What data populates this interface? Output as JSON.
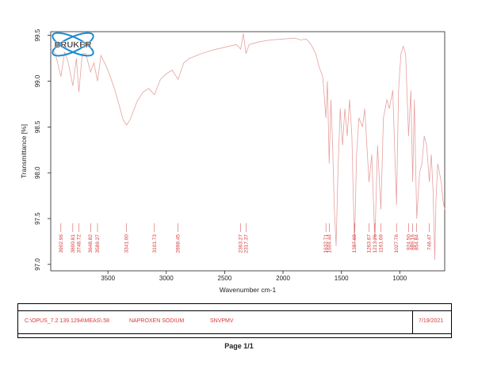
{
  "chart_data": {
    "type": "line",
    "xlabel": "Wavenumber cm-1",
    "ylabel": "Transmittance [%]",
    "x_ticks": [
      3500,
      3000,
      2500,
      2000,
      1500,
      1000
    ],
    "y_ticks": [
      97.0,
      97.5,
      98.0,
      98.5,
      99.0,
      99.5
    ],
    "xlim": [
      3990,
      615
    ],
    "ylim": [
      96.93,
      99.54
    ],
    "grid": false,
    "series": [
      {
        "color": "#e8a0a0",
        "points": [
          [
            3990,
            99.36
          ],
          [
            3950,
            99.3
          ],
          [
            3902.96,
            99.05
          ],
          [
            3870,
            99.32
          ],
          [
            3840,
            99.2
          ],
          [
            3800.81,
            98.95
          ],
          [
            3770,
            99.25
          ],
          [
            3748.72,
            98.88
          ],
          [
            3720,
            99.3
          ],
          [
            3690,
            99.3
          ],
          [
            3648.82,
            99.1
          ],
          [
            3620,
            99.2
          ],
          [
            3589.27,
            99.0
          ],
          [
            3560,
            99.28
          ],
          [
            3520,
            99.18
          ],
          [
            3480,
            99.05
          ],
          [
            3440,
            98.9
          ],
          [
            3400,
            98.72
          ],
          [
            3370,
            98.58
          ],
          [
            3341.0,
            98.52
          ],
          [
            3310,
            98.58
          ],
          [
            3280,
            98.68
          ],
          [
            3250,
            98.78
          ],
          [
            3200,
            98.88
          ],
          [
            3150,
            98.92
          ],
          [
            3101.73,
            98.85
          ],
          [
            3050,
            99.02
          ],
          [
            3000,
            99.08
          ],
          [
            2950,
            99.12
          ],
          [
            2898.45,
            99.02
          ],
          [
            2850,
            99.2
          ],
          [
            2800,
            99.25
          ],
          [
            2700,
            99.3
          ],
          [
            2600,
            99.34
          ],
          [
            2500,
            99.37
          ],
          [
            2400,
            99.4
          ],
          [
            2363.27,
            99.35
          ],
          [
            2340,
            99.52
          ],
          [
            2317.37,
            99.3
          ],
          [
            2290,
            99.4
          ],
          [
            2200,
            99.43
          ],
          [
            2100,
            99.45
          ],
          [
            2000,
            99.46
          ],
          [
            1900,
            99.47
          ],
          [
            1850,
            99.45
          ],
          [
            1800,
            99.46
          ],
          [
            1760,
            99.4
          ],
          [
            1720,
            99.3
          ],
          [
            1690,
            99.15
          ],
          [
            1660,
            99.05
          ],
          [
            1632.71,
            98.6
          ],
          [
            1620,
            99.0
          ],
          [
            1604.44,
            98.1
          ],
          [
            1590,
            98.8
          ],
          [
            1575,
            98.3
          ],
          [
            1560,
            97.6
          ],
          [
            1545,
            97.2
          ],
          [
            1530,
            98.0
          ],
          [
            1510,
            98.7
          ],
          [
            1490,
            98.3
          ],
          [
            1470,
            98.7
          ],
          [
            1450,
            98.4
          ],
          [
            1430,
            98.8
          ],
          [
            1410,
            98.4
          ],
          [
            1387.69,
            97.2
          ],
          [
            1370,
            98.2
          ],
          [
            1350,
            98.6
          ],
          [
            1320,
            98.5
          ],
          [
            1300,
            98.7
          ],
          [
            1263.67,
            97.9
          ],
          [
            1240,
            98.2
          ],
          [
            1213.26,
            97.25
          ],
          [
            1190,
            98.3
          ],
          [
            1161.69,
            97.6
          ],
          [
            1140,
            98.6
          ],
          [
            1110,
            98.8
          ],
          [
            1090,
            98.7
          ],
          [
            1060,
            98.9
          ],
          [
            1027.76,
            97.65
          ],
          [
            1010,
            98.9
          ],
          [
            990,
            99.3
          ],
          [
            970,
            99.38
          ],
          [
            950,
            99.3
          ],
          [
            924.5,
            98.4
          ],
          [
            905,
            98.9
          ],
          [
            889.16,
            97.9
          ],
          [
            875,
            98.8
          ],
          [
            854.84,
            97.5
          ],
          [
            830,
            98.0
          ],
          [
            810,
            98.1
          ],
          [
            790,
            98.4
          ],
          [
            770,
            98.3
          ],
          [
            746.47,
            97.9
          ],
          [
            730,
            98.2
          ],
          [
            715,
            97.8
          ],
          [
            700,
            97.05
          ],
          [
            690,
            97.7
          ],
          [
            675,
            98.1
          ],
          [
            660,
            98.0
          ],
          [
            645,
            97.9
          ],
          [
            630,
            97.7
          ],
          [
            615,
            97.6
          ]
        ]
      }
    ],
    "peak_labels": [
      "3902.96",
      "3800.81",
      "3748.72",
      "3648.82",
      "3589.27",
      "3341.00",
      "3101.73",
      "2898.45",
      "2363.27",
      "2317.37",
      "1632.71",
      "1604.44",
      "1387.69",
      "1263.67",
      "1213.26",
      "1161.69",
      "1027.76",
      "924.50",
      "889.16",
      "854.84",
      "746.47"
    ],
    "label_color": "#d63a3a",
    "axis_color": "#222222"
  },
  "footer": {
    "path": "C:\\OPUS_7.2.139.1294\\MEAS\\.58",
    "sample": "NAPROXEN SODIUM",
    "operator": "SNVPMV",
    "date": "7/19/2021",
    "page": "Page 1/1"
  },
  "logo": {
    "text": "BRUKER",
    "color": "#1a8ad4"
  }
}
